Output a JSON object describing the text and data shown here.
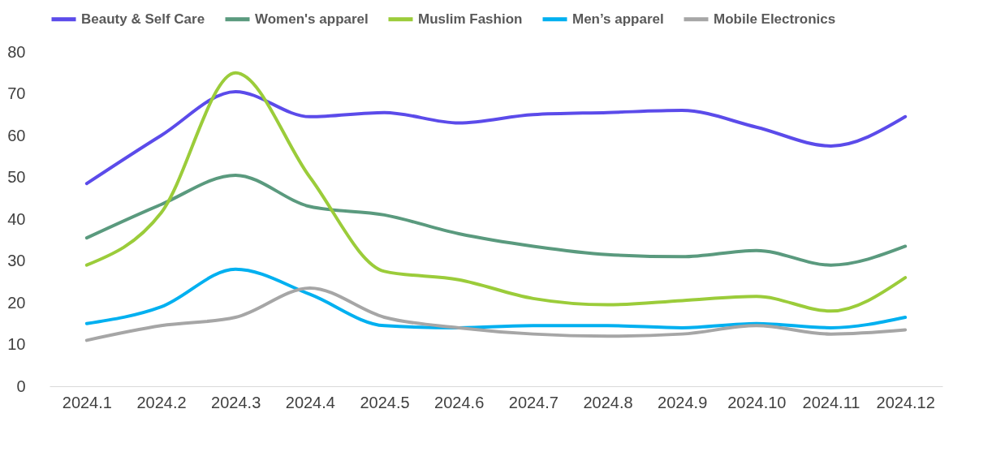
{
  "chart_data": {
    "type": "line",
    "categories": [
      "2024.1",
      "2024.2",
      "2024.3",
      "2024.4",
      "2024.5",
      "2024.6",
      "2024.7",
      "2024.8",
      "2024.9",
      "2024.10",
      "2024.11",
      "2024.12"
    ],
    "series": [
      {
        "name": "Beauty & Self Care",
        "color": "#5b4bea",
        "values": [
          48.5,
          60,
          70.5,
          64.5,
          65.5,
          63,
          65,
          65.5,
          66,
          62,
          57.5,
          64.5
        ]
      },
      {
        "name": "Women's apparel",
        "color": "#5a9a7e",
        "values": [
          35.5,
          43.5,
          50.5,
          43,
          41,
          36.5,
          33.5,
          31.5,
          31,
          32.5,
          29,
          33.5
        ]
      },
      {
        "name": "Muslim Fashion",
        "color": "#9bcc3a",
        "values": [
          29,
          41.5,
          75,
          50,
          27.5,
          25.5,
          21,
          19.5,
          20.5,
          21.5,
          18,
          26
        ]
      },
      {
        "name": "Men’s apparel",
        "color": "#00b0f0",
        "values": [
          15,
          19,
          28,
          22,
          14.5,
          14,
          14.5,
          14.5,
          14,
          15,
          14,
          16.5
        ]
      },
      {
        "name": "Mobile Electronics",
        "color": "#a6a6a6",
        "values": [
          11,
          14.5,
          16.5,
          23.5,
          16.5,
          14,
          12.5,
          12,
          12.5,
          14.5,
          12.5,
          13.5
        ]
      }
    ],
    "ylim": [
      0,
      80
    ],
    "yticks": [
      0,
      10,
      20,
      30,
      40,
      50,
      60,
      70,
      80
    ],
    "grid": false,
    "legend": "top",
    "marker": "none",
    "line_style": "solid"
  }
}
